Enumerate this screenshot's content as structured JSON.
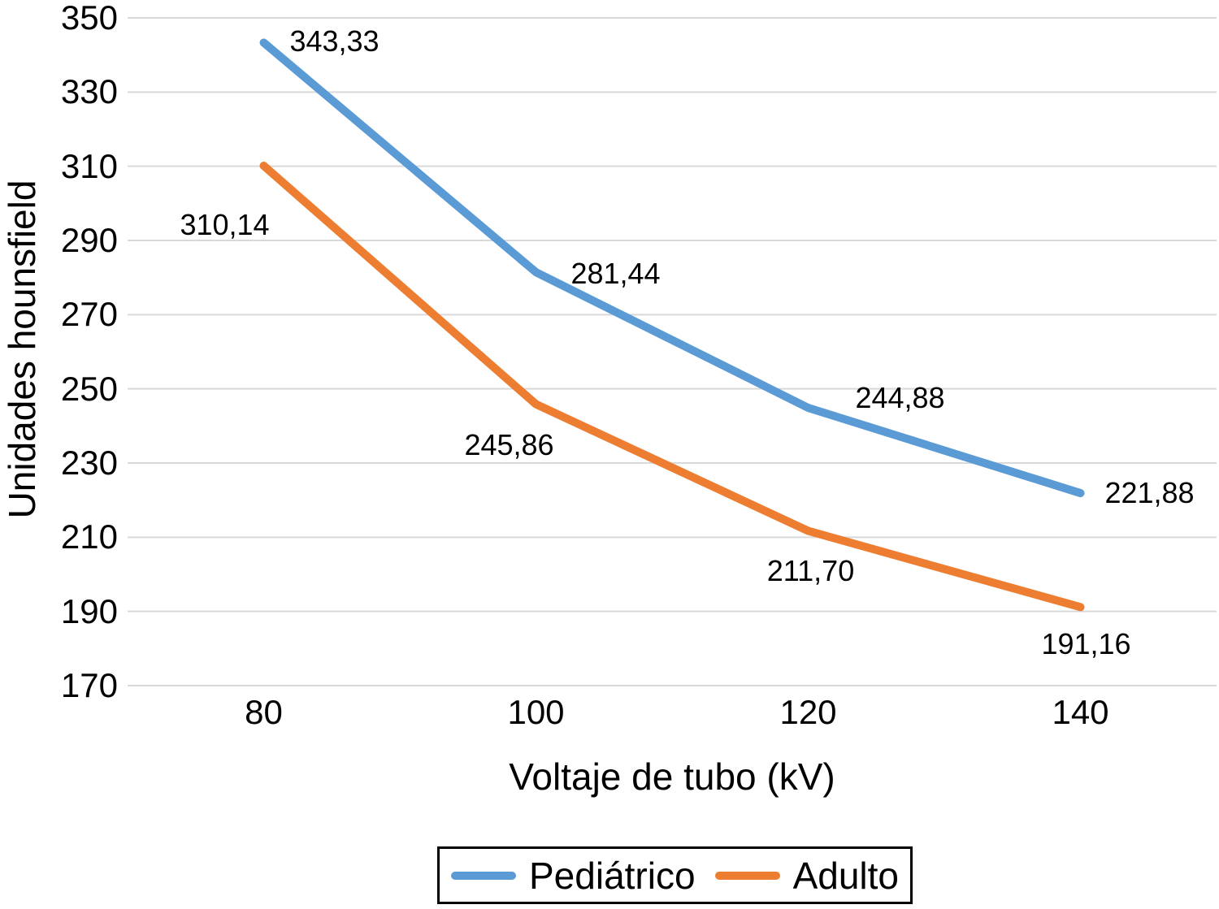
{
  "chart_data": {
    "type": "line",
    "title": "",
    "xlabel": "Voltaje de tubo (kV)",
    "ylabel": "Unidades hounsfield",
    "x": [
      80,
      100,
      120,
      140
    ],
    "ylim": [
      170,
      350
    ],
    "yticks": [
      350,
      330,
      310,
      290,
      270,
      250,
      230,
      210,
      190,
      170
    ],
    "grid": true,
    "gridline_color": "#d9d9d9",
    "legend_position": "bottom",
    "decimal_separator": ",",
    "series": [
      {
        "name": "Pediátrico",
        "color": "#5b9bd5",
        "values": [
          343.33,
          281.44,
          244.88,
          221.88
        ],
        "labels": [
          "343,33",
          "281,44",
          "244,88",
          "221,88"
        ],
        "label_offsets": [
          [
            87,
            -1
          ],
          [
            98,
            2
          ],
          [
            113,
            -12
          ],
          [
            85,
            0
          ]
        ]
      },
      {
        "name": "Adulto",
        "color": "#ed7d31",
        "values": [
          310.14,
          245.86,
          211.7,
          191.16
        ],
        "labels": [
          "310,14",
          "245,86",
          "211,70",
          "191,16"
        ],
        "label_offsets": [
          [
            -48,
            73
          ],
          [
            -33,
            50
          ],
          [
            3,
            49
          ],
          [
            7,
            46
          ]
        ]
      }
    ]
  }
}
